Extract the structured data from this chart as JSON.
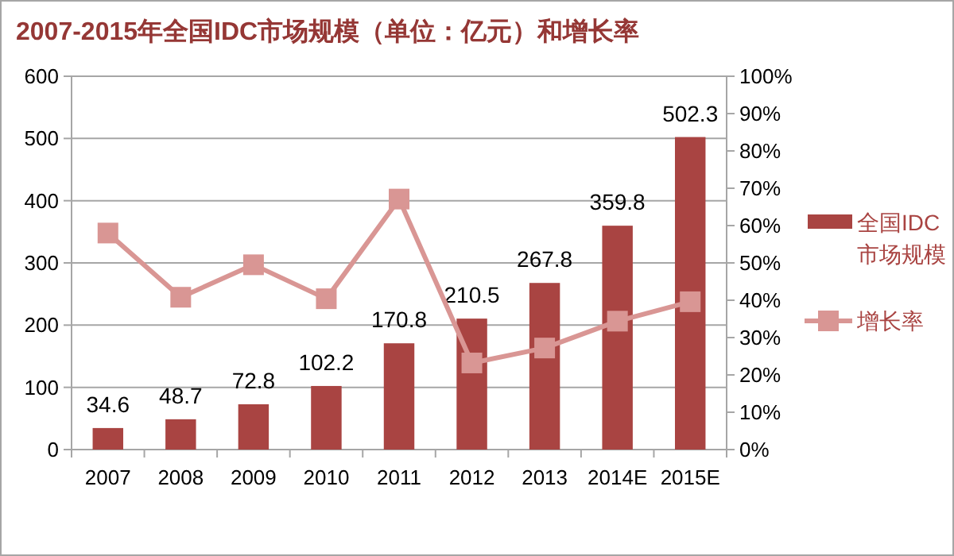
{
  "chart_data": {
    "type": "bar",
    "title": "2007-2015年全国IDC市场规模（单位：亿元）和增长率",
    "categories": [
      "2007",
      "2008",
      "2009",
      "2010",
      "2011",
      "2012",
      "2013",
      "2014E",
      "2015E"
    ],
    "series": [
      {
        "name": "全国IDC市场规模",
        "color": "#a94442",
        "values": [
          34.6,
          48.7,
          72.8,
          102.2,
          170.8,
          210.5,
          267.8,
          359.8,
          502.3
        ],
        "value_labels": [
          "34.6",
          "48.7",
          "72.8",
          "102.2",
          "170.8",
          "210.5",
          "267.8",
          "359.8",
          "502.3"
        ]
      },
      {
        "name": "增长率",
        "type": "line",
        "axis": "y2",
        "color": "#d99694",
        "marker": "square",
        "values": [
          58.0,
          40.8,
          49.5,
          40.4,
          67.1,
          23.2,
          27.2,
          34.4,
          39.6
        ]
      }
    ],
    "ylim": [
      0,
      600
    ],
    "yticks": [
      0,
      100,
      200,
      300,
      400,
      500,
      600
    ],
    "y2lim": [
      0,
      100
    ],
    "y2ticks": [
      {
        "value": 0,
        "label": "0%"
      },
      {
        "value": 10,
        "label": "10%"
      },
      {
        "value": 20,
        "label": "20%"
      },
      {
        "value": 30,
        "label": "30%"
      },
      {
        "value": 40,
        "label": "40%"
      },
      {
        "value": 50,
        "label": "50%"
      },
      {
        "value": 60,
        "label": "60%"
      },
      {
        "value": 70,
        "label": "70%"
      },
      {
        "value": 80,
        "label": "80%"
      },
      {
        "value": 90,
        "label": "90%"
      },
      {
        "value": 100,
        "label": "100%"
      }
    ],
    "grid": "y",
    "legend": "right"
  }
}
